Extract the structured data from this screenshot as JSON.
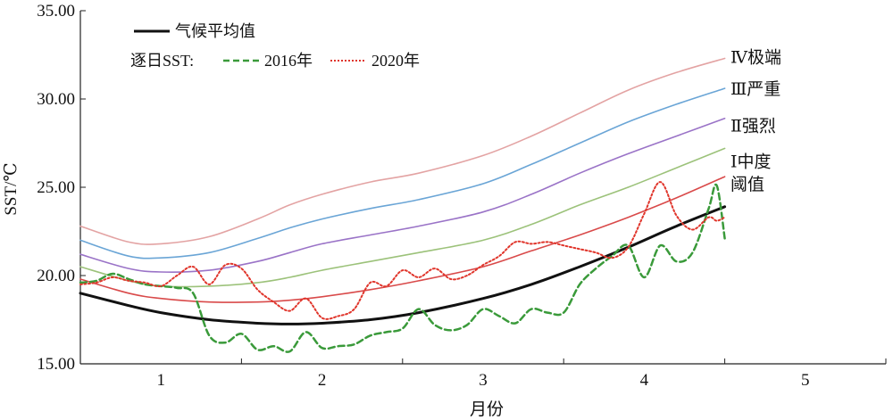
{
  "chart_data": {
    "type": "line",
    "title": "",
    "xlabel": "月份",
    "ylabel": "SST/℃",
    "xlim": [
      0.5,
      5.5
    ],
    "ylim": [
      15,
      35
    ],
    "x_ticks": [
      "1",
      "2",
      "3",
      "4",
      "5"
    ],
    "y_ticks": [
      "15.00",
      "20.00",
      "25.00",
      "30.00",
      "35.00"
    ],
    "legend": {
      "climatology_label": "气候平均值",
      "daily_prefix": "逐日SST:",
      "entries": [
        "2016年",
        "2020年"
      ],
      "position": "top-left"
    },
    "series": [
      {
        "name": "气候平均值",
        "color": "#111111",
        "style": "solid",
        "x": [
          0.5,
          0.8,
          1.0,
          1.3,
          1.6,
          1.8,
          2.0,
          2.3,
          2.6,
          3.0,
          3.3,
          3.6,
          3.9,
          4.2,
          4.5
        ],
        "y": [
          19.0,
          18.3,
          17.9,
          17.5,
          17.3,
          17.25,
          17.3,
          17.5,
          17.9,
          18.7,
          19.5,
          20.5,
          21.6,
          22.8,
          23.9
        ]
      },
      {
        "name": "阈值",
        "color": "#d94a4a",
        "style": "solid",
        "x": [
          0.5,
          0.8,
          1.0,
          1.3,
          1.6,
          1.8,
          2.0,
          2.3,
          2.6,
          3.0,
          3.3,
          3.6,
          3.9,
          4.2,
          4.5
        ],
        "y": [
          19.8,
          19.0,
          18.7,
          18.5,
          18.5,
          18.6,
          18.8,
          19.2,
          19.7,
          20.5,
          21.4,
          22.3,
          23.3,
          24.4,
          25.6
        ]
      },
      {
        "name": "I中度",
        "color": "#9cc27a",
        "style": "solid",
        "x": [
          0.5,
          0.8,
          1.0,
          1.3,
          1.6,
          1.8,
          2.0,
          2.3,
          2.6,
          3.0,
          3.3,
          3.6,
          3.9,
          4.2,
          4.5
        ],
        "y": [
          20.5,
          19.7,
          19.4,
          19.4,
          19.6,
          19.9,
          20.3,
          20.8,
          21.3,
          22.0,
          22.9,
          24.0,
          25.0,
          26.1,
          27.2
        ]
      },
      {
        "name": "II强烈",
        "color": "#9a73c7",
        "style": "solid",
        "x": [
          0.5,
          0.8,
          1.0,
          1.3,
          1.6,
          1.8,
          2.0,
          2.3,
          2.6,
          3.0,
          3.3,
          3.6,
          3.9,
          4.2,
          4.5
        ],
        "y": [
          21.2,
          20.4,
          20.2,
          20.3,
          20.8,
          21.3,
          21.8,
          22.3,
          22.8,
          23.6,
          24.6,
          25.8,
          26.9,
          27.9,
          28.9
        ]
      },
      {
        "name": "III严重",
        "color": "#6aa5d6",
        "style": "solid",
        "x": [
          0.5,
          0.8,
          1.0,
          1.3,
          1.6,
          1.8,
          2.0,
          2.3,
          2.6,
          3.0,
          3.3,
          3.6,
          3.9,
          4.2,
          4.5
        ],
        "y": [
          22.0,
          21.1,
          21.0,
          21.3,
          22.1,
          22.7,
          23.2,
          23.8,
          24.3,
          25.2,
          26.3,
          27.5,
          28.7,
          29.7,
          30.6
        ]
      },
      {
        "name": "IV极端",
        "color": "#e3a3a3",
        "style": "solid",
        "x": [
          0.5,
          0.8,
          1.0,
          1.3,
          1.6,
          1.8,
          2.0,
          2.3,
          2.6,
          3.0,
          3.3,
          3.6,
          3.9,
          4.2,
          4.5
        ],
        "y": [
          22.8,
          21.9,
          21.8,
          22.2,
          23.2,
          24.0,
          24.6,
          25.3,
          25.8,
          26.8,
          27.9,
          29.2,
          30.5,
          31.5,
          32.3
        ]
      },
      {
        "name": "2016年",
        "color": "#3a9a3a",
        "style": "dashed",
        "x": [
          0.5,
          0.6,
          0.7,
          0.8,
          0.9,
          1.0,
          1.1,
          1.2,
          1.3,
          1.4,
          1.5,
          1.6,
          1.7,
          1.8,
          1.9,
          2.0,
          2.1,
          2.2,
          2.3,
          2.4,
          2.5,
          2.6,
          2.7,
          2.8,
          2.9,
          3.0,
          3.1,
          3.2,
          3.3,
          3.4,
          3.5,
          3.6,
          3.7,
          3.8,
          3.9,
          4.0,
          4.1,
          4.2,
          4.3,
          4.4,
          4.45,
          4.5
        ],
        "y": [
          19.6,
          19.7,
          20.1,
          19.8,
          19.5,
          19.4,
          19.3,
          19.0,
          16.6,
          16.2,
          16.7,
          15.8,
          16.0,
          15.7,
          16.8,
          15.9,
          16.0,
          16.1,
          16.6,
          16.8,
          17.0,
          18.1,
          17.2,
          16.9,
          17.2,
          18.1,
          17.7,
          17.3,
          18.1,
          17.9,
          17.9,
          19.5,
          20.4,
          21.1,
          21.7,
          19.9,
          21.7,
          20.8,
          21.3,
          23.8,
          25.1,
          22.1
        ]
      },
      {
        "name": "2020年",
        "color": "#e0352b",
        "style": "dotted",
        "x": [
          0.5,
          0.6,
          0.7,
          0.8,
          0.9,
          1.0,
          1.1,
          1.2,
          1.3,
          1.4,
          1.5,
          1.6,
          1.7,
          1.8,
          1.9,
          2.0,
          2.1,
          2.2,
          2.3,
          2.4,
          2.5,
          2.6,
          2.7,
          2.8,
          2.9,
          3.0,
          3.1,
          3.2,
          3.3,
          3.4,
          3.5,
          3.6,
          3.7,
          3.8,
          3.9,
          4.0,
          4.1,
          4.2,
          4.3,
          4.4,
          4.45,
          4.5
        ],
        "y": [
          19.5,
          19.6,
          19.9,
          19.7,
          19.6,
          19.4,
          20.0,
          20.5,
          19.5,
          20.6,
          20.4,
          19.2,
          18.5,
          18.0,
          18.7,
          17.6,
          17.7,
          18.1,
          19.6,
          19.4,
          20.3,
          19.9,
          20.4,
          19.8,
          20.0,
          20.6,
          21.1,
          21.9,
          21.8,
          21.9,
          21.7,
          21.5,
          21.3,
          21.0,
          21.6,
          23.5,
          25.3,
          23.4,
          22.6,
          23.3,
          23.1,
          23.3
        ]
      }
    ],
    "band_labels": [
      {
        "text": "Ⅳ极端",
        "y": 32.4
      },
      {
        "text": "Ⅲ严重",
        "y": 30.6
      },
      {
        "text": "Ⅱ强烈",
        "y": 28.5
      },
      {
        "text": "Ⅰ中度",
        "y": 26.5
      },
      {
        "text": "阈值",
        "y": 25.2
      }
    ],
    "grid": false
  }
}
